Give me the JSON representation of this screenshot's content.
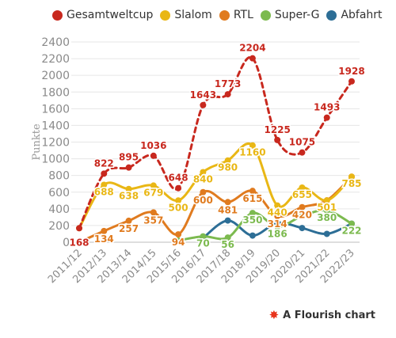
{
  "chart_data": {
    "type": "line",
    "title": "",
    "xlabel": "",
    "ylabel": "Punkte",
    "ylim": [
      0,
      2400
    ],
    "yticks": [
      0,
      200,
      400,
      600,
      800,
      1000,
      1200,
      1400,
      1600,
      1800,
      2000,
      2200,
      2400
    ],
    "grid": true,
    "legend_position": "top",
    "categories": [
      "2011/12",
      "2012/13",
      "2013/14",
      "2014/15",
      "2015/16",
      "2016/17",
      "2017/18",
      "2018/19",
      "2019/20",
      "2020/21",
      "2021/22",
      "2022/23"
    ],
    "series": [
      {
        "name": "Gesamtweltcup",
        "color": "#c8281e",
        "dashed": true,
        "labels": true,
        "values": [
          168,
          822,
          895,
          1036,
          648,
          1643,
          1773,
          2204,
          1225,
          1075,
          1493,
          1928
        ]
      },
      {
        "name": "Slalom",
        "color": "#e9b715",
        "dashed": false,
        "labels": true,
        "values": [
          168,
          688,
          638,
          679,
          500,
          840,
          980,
          1160,
          440,
          655,
          501,
          785
        ]
      },
      {
        "name": "RTL",
        "color": "#e07b1f",
        "dashed": false,
        "labels": true,
        "values": [
          0,
          134,
          257,
          357,
          94,
          600,
          481,
          615,
          314,
          420,
          501,
          785
        ]
      },
      {
        "name": "Super-G",
        "color": "#7cba4f",
        "dashed": false,
        "labels": true,
        "values": [
          null,
          null,
          null,
          null,
          20,
          70,
          56,
          350,
          186,
          315,
          380,
          222
        ]
      },
      {
        "name": "Abfahrt",
        "color": "#2d6e96",
        "dashed": false,
        "labels": false,
        "values": [
          null,
          null,
          null,
          null,
          null,
          50,
          260,
          80,
          230,
          170,
          100,
          222
        ]
      }
    ],
    "point_labels": {
      "Gesamtweltcup": [
        "168",
        "822",
        "895",
        "1036",
        "648",
        "1643",
        "1773",
        "2204",
        "1225",
        "1075",
        "1493",
        "1928"
      ],
      "Slalom": [
        "",
        "688",
        "638",
        "679",
        "500",
        "840",
        "980",
        "1160",
        "440",
        "655",
        "501",
        "785"
      ],
      "RTL": [
        "",
        "134",
        "257",
        "357",
        "94",
        "600",
        "481",
        "615",
        "314",
        "420",
        "",
        ""
      ],
      "Super-G": [
        "",
        "",
        "",
        "",
        "",
        "70",
        "56",
        "350",
        "186",
        "",
        "380",
        "222"
      ]
    }
  },
  "credit": {
    "text": "A Flourish chart",
    "icon": "flourish-logo-icon"
  }
}
